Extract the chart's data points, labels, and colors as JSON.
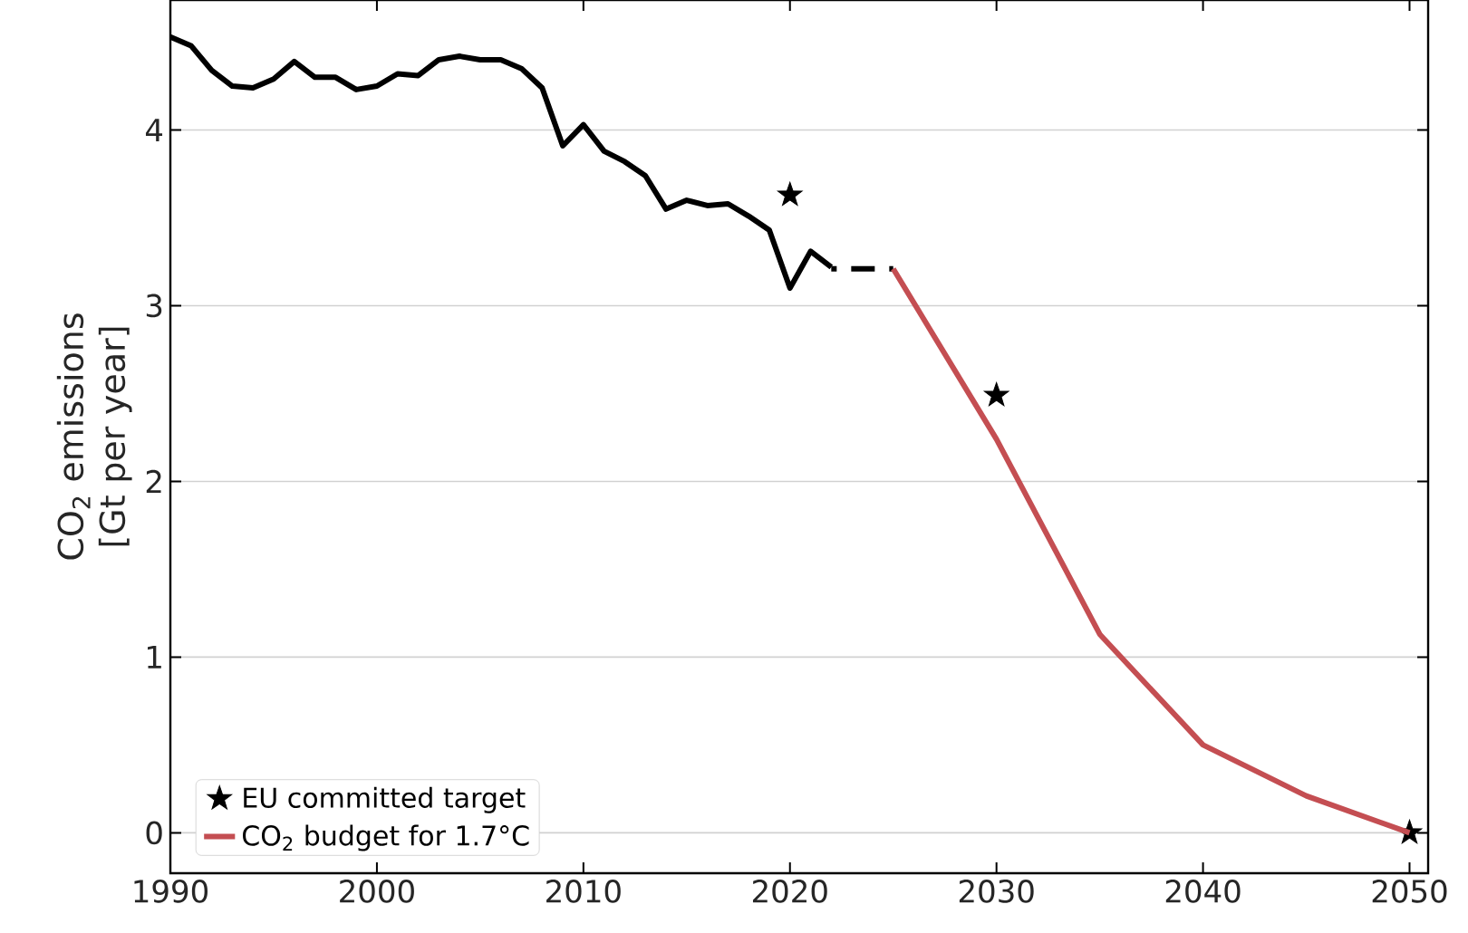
{
  "chart_data": {
    "type": "line",
    "ylabel": "CO$_{2}$ emissions [Gt per year]",
    "xlim": [
      1990,
      2050.9
    ],
    "ylim": [
      -0.23,
      4.74
    ],
    "xticks": [
      1990,
      2000,
      2010,
      2020,
      2030,
      2040,
      2050
    ],
    "yticks": [
      0,
      1,
      2,
      3,
      4
    ],
    "grid": "y",
    "legend": "bottom left",
    "series": [
      {
        "color": "#000000",
        "x": [
          1990,
          1991,
          1992,
          1993,
          1994,
          1995,
          1996,
          1997,
          1998,
          1999,
          2000,
          2001,
          2002,
          2003,
          2004,
          2005,
          2006,
          2007,
          2008,
          2009,
          2010,
          2011,
          2012,
          2013,
          2014,
          2015,
          2016,
          2017,
          2018,
          2019,
          2020,
          2021,
          2022
        ],
        "values": [
          4.53,
          4.48,
          4.34,
          4.25,
          4.24,
          4.29,
          4.39,
          4.3,
          4.3,
          4.23,
          4.25,
          4.32,
          4.31,
          4.4,
          4.42,
          4.4,
          4.4,
          4.35,
          4.24,
          3.91,
          4.03,
          3.88,
          3.82,
          3.74,
          3.55,
          3.6,
          3.57,
          3.58,
          3.51,
          3.43,
          3.1,
          3.31,
          3.22
        ]
      },
      {
        "color": "#000000",
        "line_style": "dashed",
        "x": [
          2022,
          2025
        ],
        "values": [
          3.21,
          3.21
        ]
      },
      {
        "name": "EU committed target",
        "type": "scatter",
        "marker": "star",
        "color": "#000000",
        "x": [
          2020,
          2030,
          2050
        ],
        "values": [
          3.63,
          2.49,
          0
        ]
      },
      {
        "name": "CO$_{2}$ budget for 1.7°C",
        "color": "#c44e52",
        "x": [
          2025,
          2030,
          2035,
          2040,
          2045,
          2050
        ],
        "values": [
          3.21,
          2.24,
          1.13,
          0.5,
          0.21,
          0
        ]
      }
    ]
  }
}
